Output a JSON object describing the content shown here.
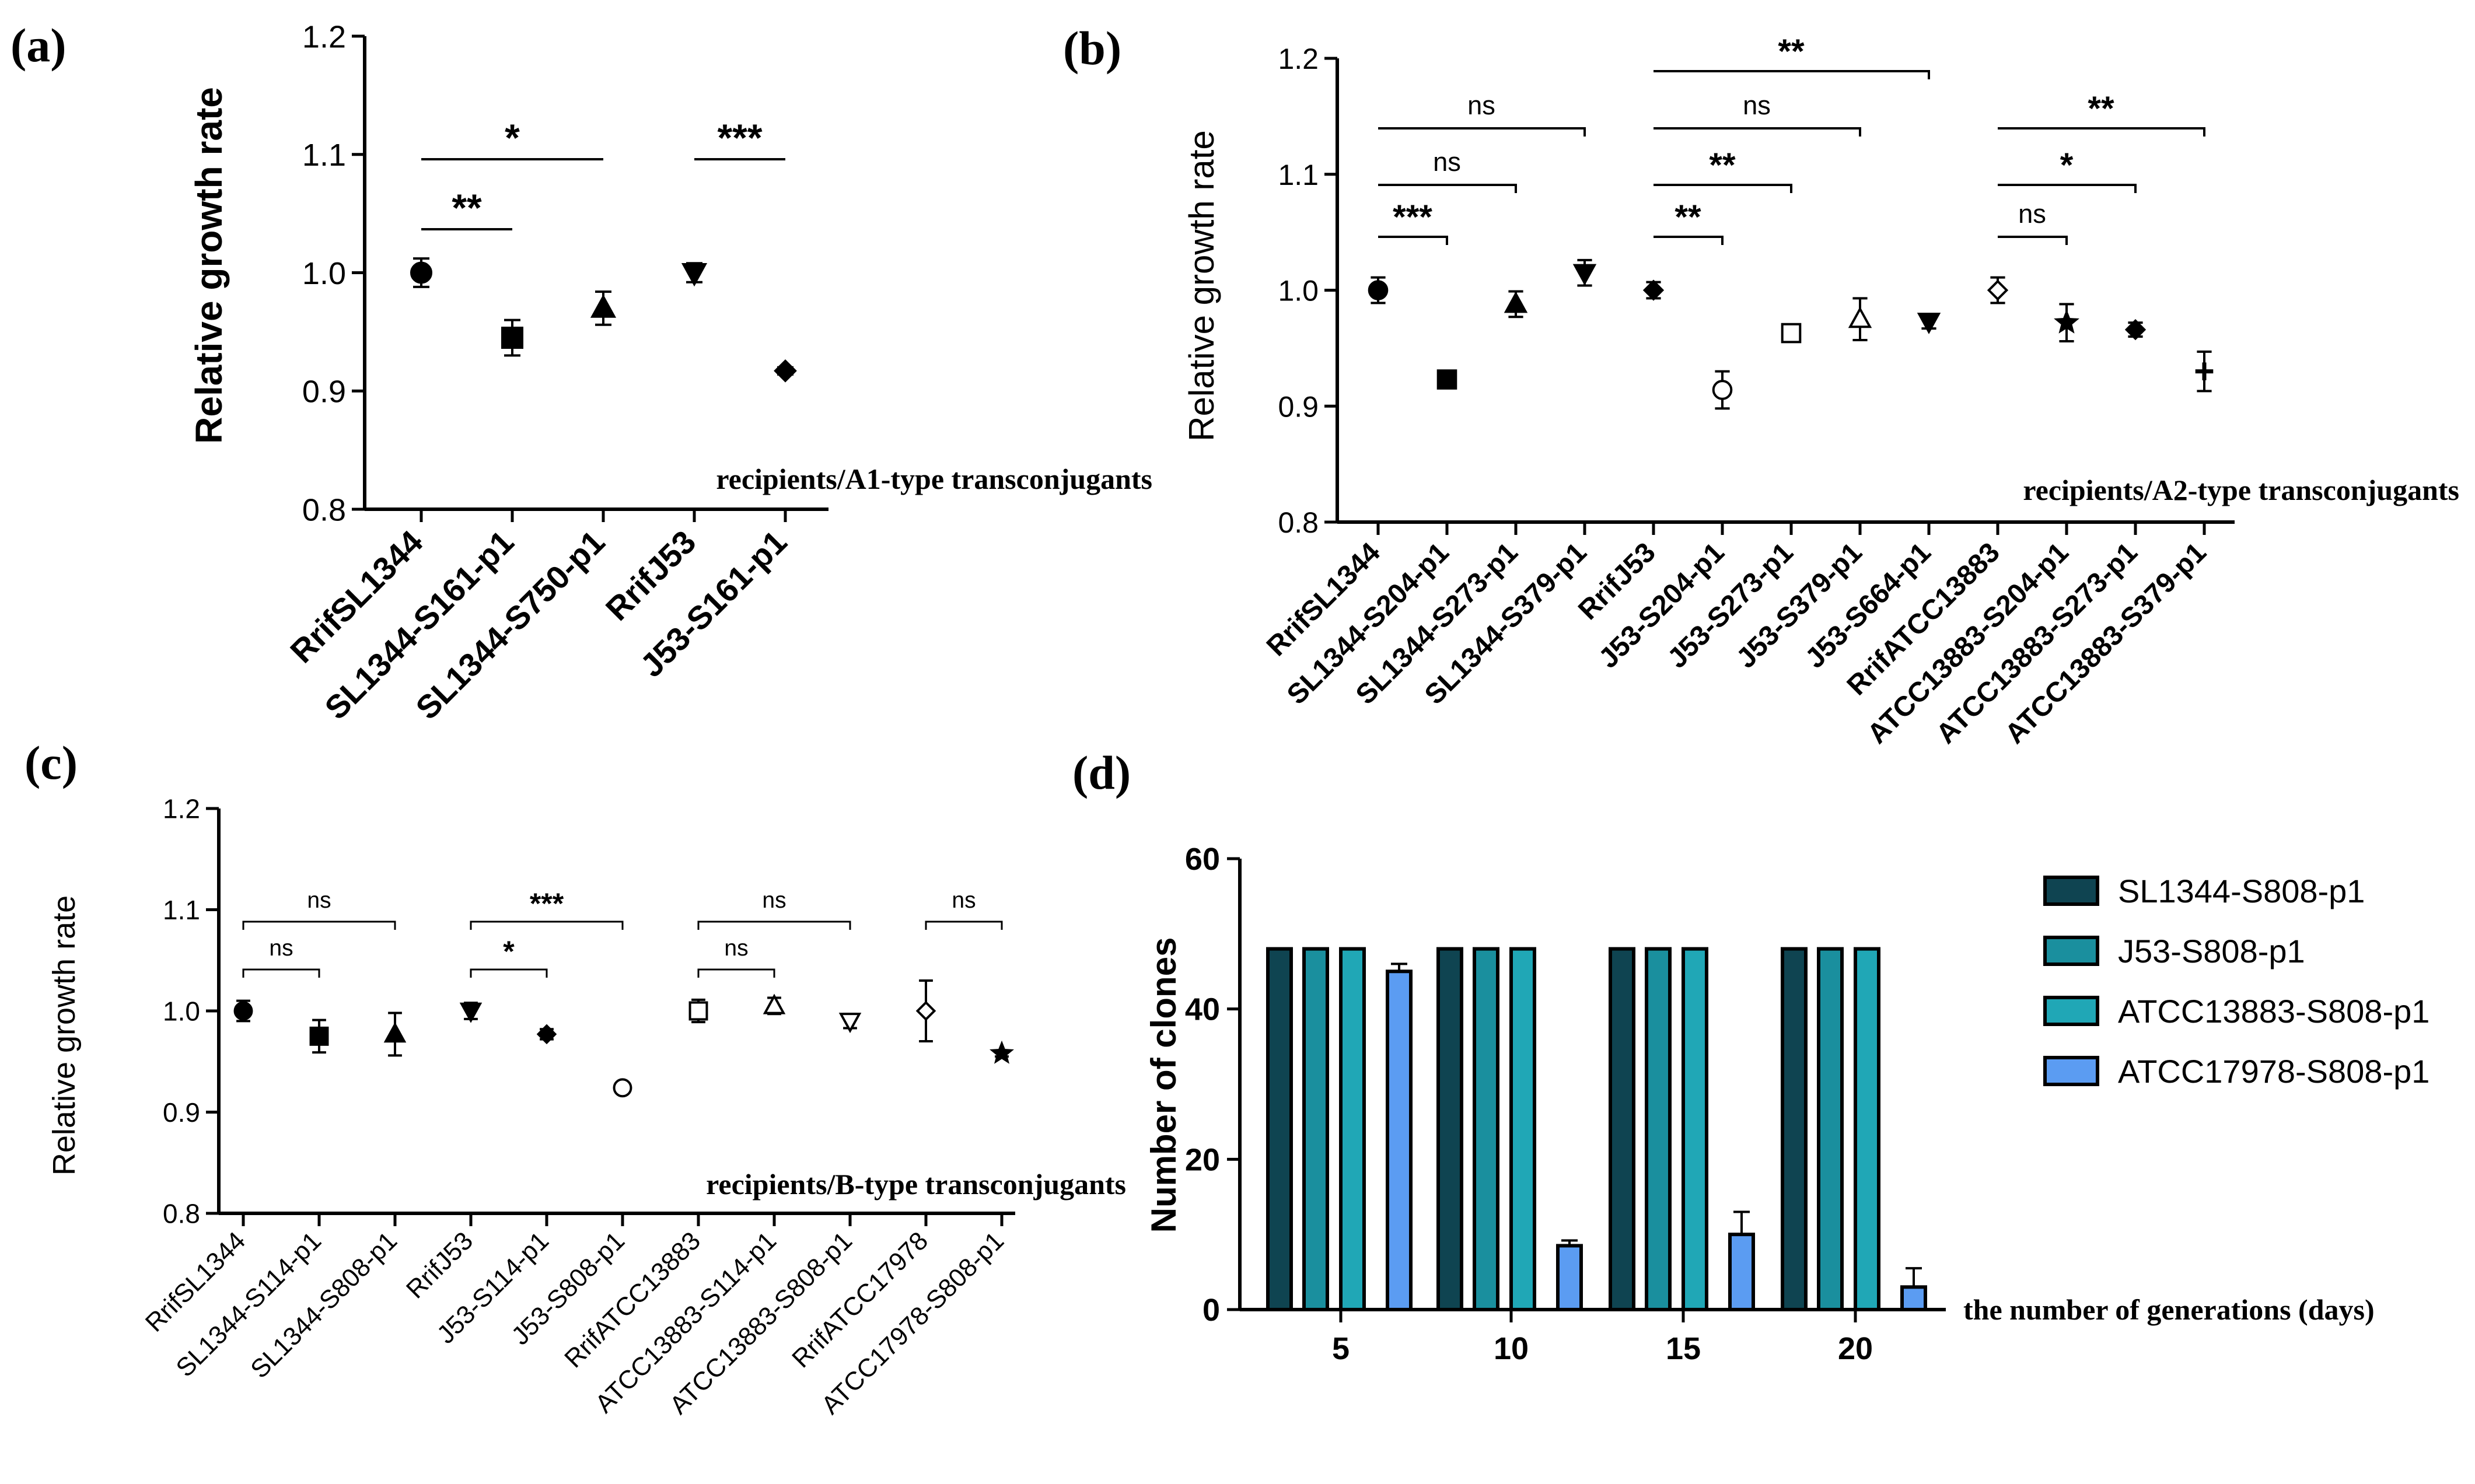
{
  "panels": [
    {
      "label": "(a)",
      "ylabel": "Relative growth rate",
      "note": "recipients/A1-type transconjugants"
    },
    {
      "label": "(b)",
      "ylabel": "Relative growth rate",
      "note": "recipients/A2-type transconjugants"
    },
    {
      "label": "(c)",
      "ylabel": "Relative growth rate",
      "note": "recipients/B-type transconjugants"
    },
    {
      "label": "(d)",
      "ylabel": "Number of clones",
      "xlabel": "the number of generations (days)"
    }
  ],
  "chart_data": [
    {
      "type": "scatter",
      "ylabel": "Relative growth rate",
      "ylim": [
        0.8,
        1.2
      ],
      "yticks": [
        "0.8",
        "0.9",
        "1.0",
        "1.1",
        "1.2"
      ],
      "categories": [
        "RrifSL1344",
        "SL1344-S161-p1",
        "SL1344-S750-p1",
        "RrifJ53",
        "J53-S161-p1"
      ],
      "values": [
        1.0,
        0.945,
        0.97,
        1.0,
        0.917
      ],
      "errors": [
        0.012,
        0.015,
        0.014,
        0.008,
        0.003
      ],
      "markers": [
        "circle",
        "square",
        "triangle-up",
        "triangle-down",
        "diamond"
      ],
      "significance": [
        {
          "from": 0,
          "to": 1,
          "label": "**"
        },
        {
          "from": 0,
          "to": 2,
          "label": "*"
        },
        {
          "from": 3,
          "to": 4,
          "label": "***"
        }
      ]
    },
    {
      "type": "scatter",
      "ylabel": "Relative growth rate",
      "ylim": [
        0.8,
        1.2
      ],
      "yticks": [
        "0.8",
        "0.9",
        "1.0",
        "1.1",
        "1.2"
      ],
      "categories": [
        "RrifSL1344",
        "SL1344-S204-p1",
        "SL1344-S273-p1",
        "SL1344-S379-p1",
        "RrifJ53",
        "J53-S204-p1",
        "J53-S273-p1",
        "J53-S379-p1",
        "J53-S664-p1",
        "RrifATCC13883",
        "ATCC13883-S204-p1",
        "ATCC13883-S273-p1",
        "ATCC13883-S379-p1"
      ],
      "values": [
        1.0,
        0.923,
        0.988,
        1.015,
        1.0,
        0.914,
        0.963,
        0.975,
        0.973,
        1.0,
        0.972,
        0.966,
        0.93
      ],
      "errors": [
        0.011,
        0.005,
        0.011,
        0.011,
        0.007,
        0.016,
        0.006,
        0.018,
        0.006,
        0.011,
        0.016,
        0.006,
        0.017
      ],
      "markers": [
        "circle",
        "square",
        "triangle-up",
        "triangle-down",
        "diamond",
        "open-circle",
        "open-square",
        "open-triangle-up",
        "triangle-down",
        "open-diamond",
        "star",
        "diamond",
        "plus"
      ],
      "significance": [
        {
          "from": 0,
          "to": 1,
          "label": "***"
        },
        {
          "from": 0,
          "to": 2,
          "label": "ns"
        },
        {
          "from": 0,
          "to": 3,
          "label": "ns"
        },
        {
          "from": 4,
          "to": 5,
          "label": "**"
        },
        {
          "from": 4,
          "to": 6,
          "label": "**"
        },
        {
          "from": 4,
          "to": 7,
          "label": "ns"
        },
        {
          "from": 4,
          "to": 8,
          "label": "**"
        },
        {
          "from": 9,
          "to": 10,
          "label": "ns"
        },
        {
          "from": 9,
          "to": 11,
          "label": "*"
        },
        {
          "from": 9,
          "to": 12,
          "label": "**"
        }
      ]
    },
    {
      "type": "scatter",
      "ylabel": "Relative growth rate",
      "ylim": [
        0.8,
        1.2
      ],
      "yticks": [
        "0.8",
        "0.9",
        "1.0",
        "1.1",
        "1.2"
      ],
      "categories": [
        "RrifSL1344",
        "SL1344-S114-p1",
        "SL1344-S808-p1",
        "RrifJ53",
        "J53-S114-p1",
        "J53-S808-p1",
        "RrifATCC13883",
        "ATCC13883-S114-p1",
        "ATCC13883-S808-p1",
        "RrifATCC17978",
        "ATCC17978-S808-p1"
      ],
      "values": [
        1.0,
        0.975,
        0.977,
        1.0,
        0.977,
        0.924,
        1.0,
        1.005,
        0.99,
        1.0,
        0.958
      ],
      "errors": [
        0.01,
        0.016,
        0.021,
        0.008,
        0.005,
        0.004,
        0.011,
        0.008,
        0.007,
        0.03,
        0.003
      ],
      "markers": [
        "circle",
        "square",
        "triangle-up",
        "triangle-down",
        "diamond",
        "open-circle",
        "open-square",
        "open-triangle-up",
        "open-triangle-down",
        "open-diamond",
        "star"
      ],
      "significance": [
        {
          "from": 0,
          "to": 1,
          "label": "ns"
        },
        {
          "from": 0,
          "to": 2,
          "label": "ns"
        },
        {
          "from": 3,
          "to": 4,
          "label": "*"
        },
        {
          "from": 3,
          "to": 5,
          "label": "***"
        },
        {
          "from": 6,
          "to": 7,
          "label": "ns"
        },
        {
          "from": 6,
          "to": 8,
          "label": "ns"
        },
        {
          "from": 9,
          "to": 10,
          "label": "ns"
        }
      ]
    },
    {
      "type": "bar",
      "ylabel": "Number of clones",
      "xlabel": "the number of generations (days)",
      "ylim": [
        0,
        60
      ],
      "yticks": [
        "0",
        "20",
        "40",
        "60"
      ],
      "categories": [
        "5",
        "10",
        "15",
        "20"
      ],
      "series": [
        {
          "name": "SL1344-S808-p1",
          "values": [
            48,
            48,
            48,
            48
          ],
          "errors": [
            0,
            0,
            0,
            0
          ],
          "color": "#0f4451"
        },
        {
          "name": "J53-S808-p1",
          "values": [
            48,
            48,
            48,
            48
          ],
          "errors": [
            0,
            0,
            0,
            0
          ],
          "color": "#1a8f9e"
        },
        {
          "name": "ATCC13883-S808-p1",
          "values": [
            48,
            48,
            48,
            48
          ],
          "errors": [
            0,
            0,
            0,
            0
          ],
          "color": "#20a7b6"
        },
        {
          "name": "ATCC17978-S808-p1",
          "values": [
            45,
            8.5,
            10,
            3
          ],
          "errors": [
            1,
            0.7,
            3,
            2.5
          ],
          "color": "#5b9cf2"
        }
      ],
      "legend": "right"
    }
  ]
}
